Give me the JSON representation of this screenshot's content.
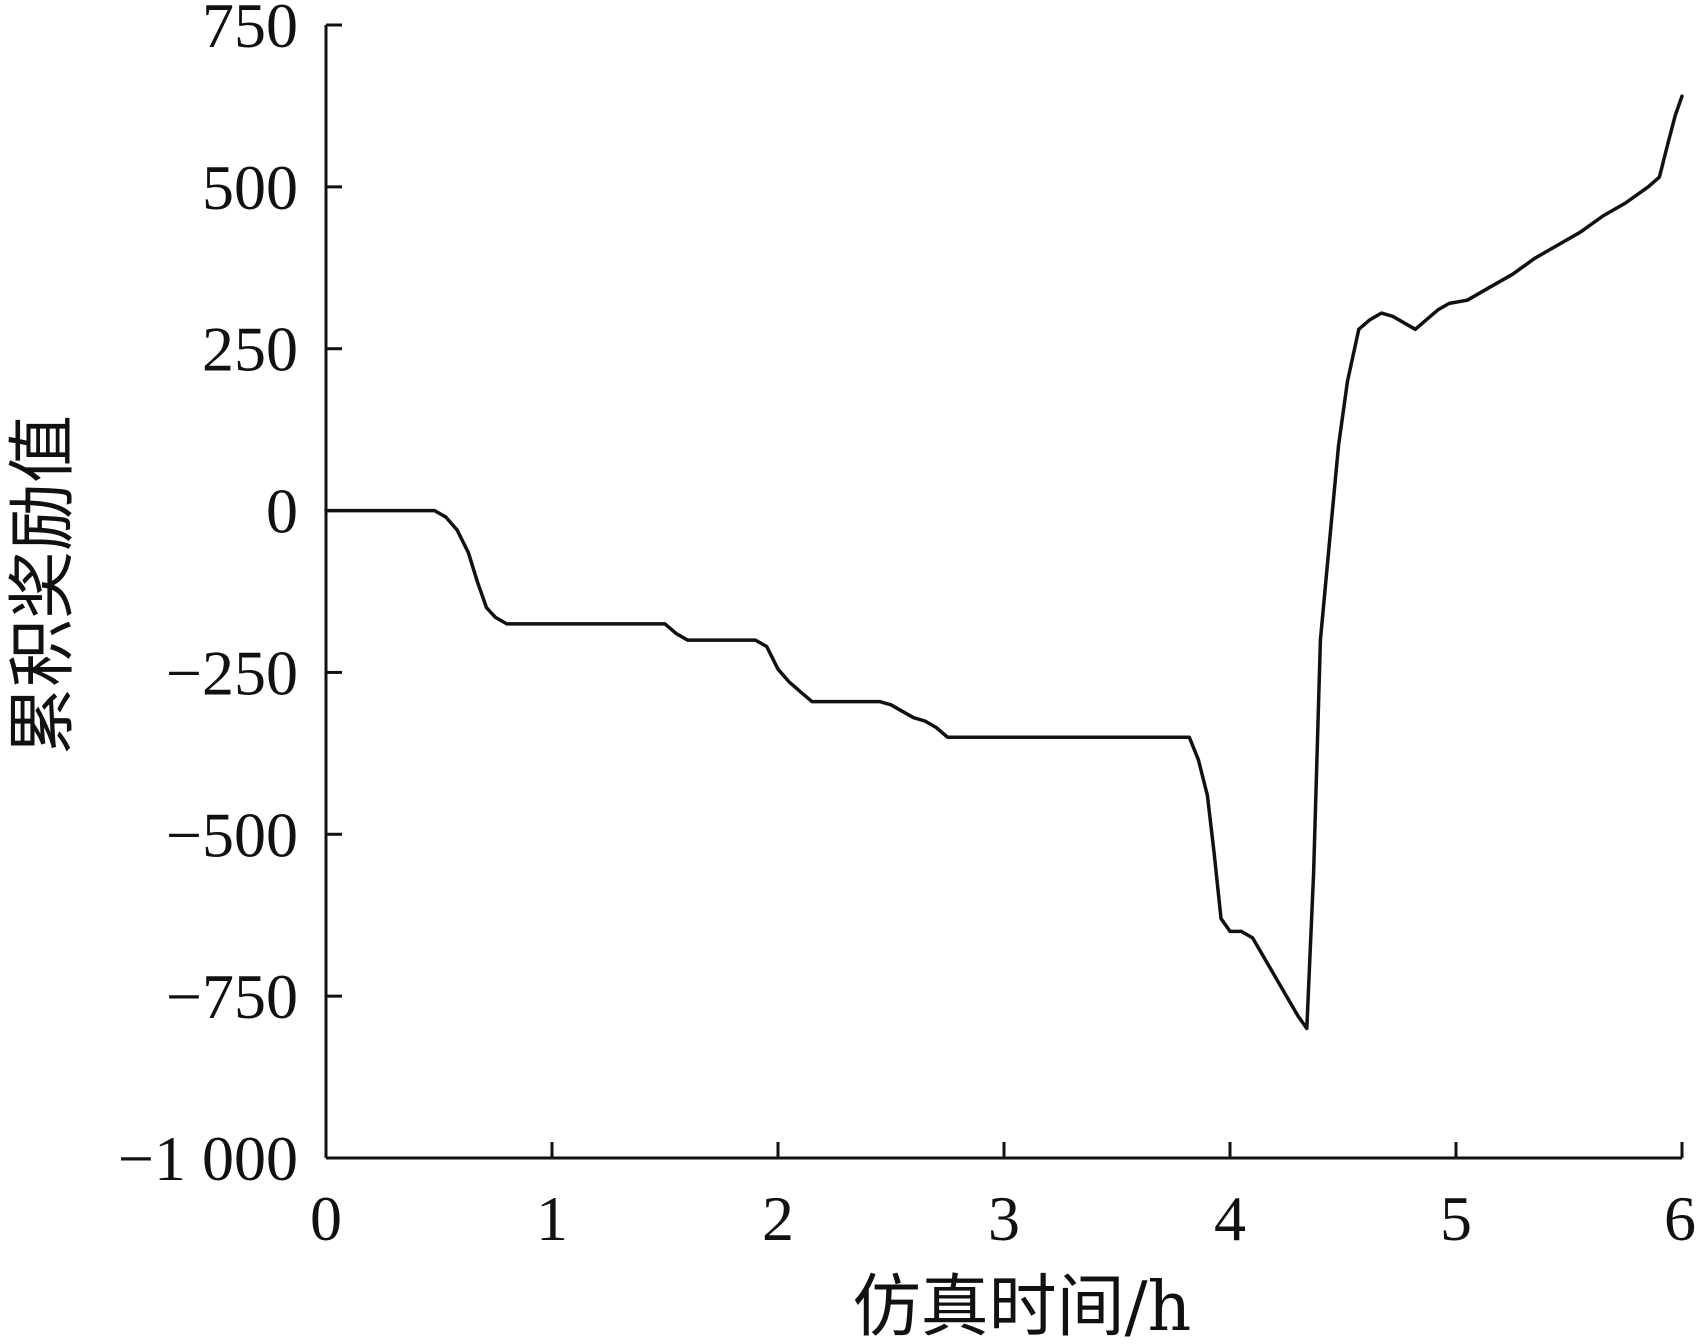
{
  "colors": {
    "line": "#111111",
    "axis": "#111111",
    "background": "#ffffff"
  },
  "chart_data": {
    "type": "line",
    "title": "",
    "xlabel": "仿真时间/h",
    "ylabel": "累积奖励值",
    "xlim": [
      0,
      6
    ],
    "ylim": [
      -1000,
      750
    ],
    "xticks": [
      0,
      1,
      2,
      3,
      4,
      5,
      6
    ],
    "yticks": [
      -1000,
      -750,
      -500,
      -250,
      0,
      250,
      500,
      750
    ],
    "xtick_labels": [
      "0",
      "1",
      "2",
      "3",
      "4",
      "5",
      "6"
    ],
    "ytick_labels": [
      "−1 000",
      "−750",
      "−500",
      "−250",
      "0",
      "250",
      "500",
      "750"
    ],
    "grid": false,
    "legend": "none",
    "series": [
      {
        "x": [
          0,
          0.48,
          0.53,
          0.58,
          0.63,
          0.67,
          0.71,
          0.75,
          0.8,
          1.0,
          1.3,
          1.5,
          1.55,
          1.6,
          1.9,
          1.95,
          2.0,
          2.05,
          2.1,
          2.15,
          2.3,
          2.45,
          2.5,
          2.55,
          2.6,
          2.65,
          2.7,
          2.75,
          3.0,
          3.5,
          3.82,
          3.86,
          3.9,
          3.93,
          3.96,
          4.0,
          4.05,
          4.1,
          4.2,
          4.3,
          4.34,
          4.37,
          4.4,
          4.44,
          4.48,
          4.52,
          4.57,
          4.62,
          4.67,
          4.72,
          4.77,
          4.82,
          4.87,
          4.92,
          4.97,
          5.05,
          5.15,
          5.25,
          5.35,
          5.45,
          5.55,
          5.65,
          5.75,
          5.85,
          5.9,
          5.94,
          5.97,
          6.0
        ],
        "y": [
          0,
          0,
          -10,
          -30,
          -65,
          -110,
          -150,
          -165,
          -175,
          -175,
          -175,
          -175,
          -190,
          -200,
          -200,
          -210,
          -245,
          -265,
          -280,
          -295,
          -295,
          -295,
          -300,
          -310,
          -320,
          -325,
          -335,
          -350,
          -350,
          -350,
          -350,
          -385,
          -440,
          -530,
          -630,
          -650,
          -650,
          -660,
          -720,
          -780,
          -800,
          -560,
          -200,
          -50,
          100,
          200,
          280,
          295,
          305,
          300,
          290,
          280,
          295,
          310,
          320,
          325,
          345,
          365,
          390,
          410,
          430,
          455,
          475,
          500,
          515,
          570,
          610,
          640
        ]
      }
    ]
  }
}
